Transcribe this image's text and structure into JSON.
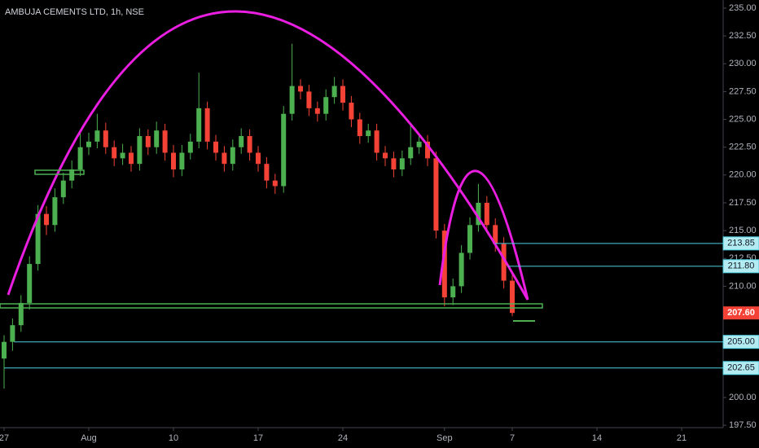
{
  "chart_data": {
    "type": "candlestick",
    "title": "AMBUJA CEMENTS LTD, 1h, NSE",
    "x": [
      0,
      0.5,
      1,
      1.5,
      2,
      2.5,
      3,
      3.5,
      4,
      4.5,
      5,
      5.5,
      6,
      6.5,
      7,
      7.5,
      8,
      8.5,
      9,
      9.5,
      10,
      10.5,
      11,
      11.5,
      12,
      12.5,
      13,
      13.5,
      14,
      14.5,
      15,
      15.5,
      16,
      16.5,
      17,
      17.5,
      18,
      18.5,
      19,
      19.5,
      20,
      20.5,
      21,
      21.5,
      22,
      22.5,
      23,
      23.5,
      24,
      24.5,
      25,
      25.5,
      26,
      26.5,
      27,
      27.5,
      28,
      28.5,
      29,
      29.5,
      30
    ],
    "open": [
      203.5,
      205.0,
      206.5,
      208.5,
      212.0,
      216.5,
      215.5,
      218.0,
      219.5,
      220.5,
      222.5,
      223.0,
      224.0,
      222.5,
      221.5,
      222.0,
      221.0,
      223.5,
      222.5,
      224.0,
      222.0,
      220.5,
      222.0,
      223.0,
      226.0,
      223.0,
      222.0,
      221.0,
      222.5,
      223.5,
      222.0,
      221.0,
      219.5,
      219.0,
      225.5,
      228.0,
      227.5,
      226.0,
      225.5,
      227.0,
      228.0,
      226.5,
      225.0,
      223.5,
      224.0,
      222.0,
      221.5,
      220.5,
      221.5,
      222.5,
      223.0,
      221.5,
      215.0,
      209.0,
      210.0,
      213.0,
      215.5,
      217.5,
      215.5,
      213.8,
      210.5
    ],
    "high": [
      205.6,
      207.1,
      209.2,
      212.7,
      217.3,
      217.2,
      218.8,
      220.2,
      221.3,
      224.0,
      223.8,
      225.5,
      224.7,
      223.1,
      222.8,
      222.6,
      224.2,
      224.1,
      224.8,
      224.6,
      222.7,
      222.7,
      223.7,
      229.2,
      226.6,
      223.6,
      222.6,
      223.2,
      224.2,
      224.1,
      222.6,
      221.6,
      220.1,
      226.2,
      231.8,
      228.6,
      228.1,
      226.6,
      227.7,
      228.8,
      228.6,
      227.1,
      225.6,
      224.6,
      224.6,
      222.6,
      222.1,
      222.2,
      224.5,
      223.6,
      223.6,
      222.1,
      215.6,
      210.7,
      213.7,
      216.2,
      219.2,
      218.1,
      216.1,
      214.4,
      211.1
    ],
    "low": [
      200.8,
      204.2,
      205.9,
      207.9,
      211.4,
      214.6,
      214.9,
      217.4,
      218.8,
      219.9,
      221.8,
      222.4,
      221.9,
      220.8,
      220.9,
      220.3,
      220.4,
      221.8,
      221.9,
      221.3,
      219.8,
      219.9,
      221.4,
      222.4,
      222.3,
      221.3,
      220.3,
      220.4,
      221.9,
      221.3,
      220.3,
      218.8,
      218.3,
      218.4,
      224.9,
      226.8,
      225.3,
      224.8,
      224.9,
      226.4,
      225.8,
      224.3,
      222.8,
      222.9,
      221.3,
      220.8,
      219.8,
      219.9,
      220.9,
      221.9,
      220.8,
      214.3,
      208.2,
      208.3,
      209.4,
      212.4,
      214.9,
      214.8,
      213.1,
      209.8,
      207.3
    ],
    "close": [
      205.0,
      206.5,
      208.5,
      212.0,
      216.5,
      215.5,
      218.0,
      219.5,
      220.5,
      222.5,
      223.0,
      224.0,
      222.5,
      221.5,
      222.0,
      221.0,
      223.5,
      222.5,
      224.0,
      222.0,
      220.5,
      222.0,
      223.0,
      226.0,
      223.0,
      222.0,
      221.0,
      222.5,
      223.5,
      222.0,
      221.0,
      219.5,
      219.0,
      225.5,
      228.0,
      227.5,
      226.0,
      225.5,
      227.0,
      228.0,
      226.5,
      225.0,
      223.5,
      224.0,
      222.0,
      221.5,
      220.5,
      221.5,
      222.5,
      223.0,
      221.5,
      215.0,
      209.0,
      210.0,
      213.0,
      215.5,
      217.5,
      215.5,
      213.8,
      210.5,
      207.6
    ],
    "up_color": "#4caf50",
    "down_color": "#f44336",
    "xlim": [
      -0.24,
      42.45
    ],
    "xticks": [
      {
        "value": 0,
        "label": "27"
      },
      {
        "value": 5,
        "label": "Aug"
      },
      10,
      {
        "value": 15,
        "label": "17"
      },
      {
        "value": 20,
        "label": "24"
      },
      {
        "value": 26,
        "label": "Sep"
      },
      {
        "value": 30,
        "label": "7"
      },
      {
        "value": 35,
        "label": "14"
      },
      {
        "value": 40,
        "label": "21"
      }
    ],
    "ylim": [
      197.29,
      235.73
    ],
    "yticks": [
      {
        "value": 197.5,
        "label": "197.50"
      },
      {
        "value": 200,
        "label": "200.00"
      },
      {
        "value": 202.5,
        "label": "202.50"
      },
      {
        "value": 205,
        "label": "205.00"
      },
      {
        "value": 207.5,
        "label": "207.50"
      },
      {
        "value": 210,
        "label": "210.00"
      },
      {
        "value": 212.5,
        "label": "212.50"
      },
      {
        "value": 215,
        "label": "215.00"
      },
      {
        "value": 217.5,
        "label": "217.50"
      },
      {
        "value": 220,
        "label": "220.00"
      },
      {
        "value": 222.5,
        "label": "222.50"
      },
      {
        "value": 225,
        "label": "225.00"
      },
      {
        "value": 227.5,
        "label": "227.50"
      },
      {
        "value": 230,
        "label": "230.00"
      },
      {
        "value": 232.5,
        "label": "232.50"
      },
      {
        "value": 235,
        "label": "235.00"
      }
    ],
    "grid": false,
    "levels": [
      {
        "value": 213.85,
        "label": "213.85",
        "from": 29
      },
      {
        "value": 211.8,
        "label": "211.80",
        "from": 29.75
      },
      {
        "value": 205,
        "label": "205.00",
        "from": 0.6
      },
      {
        "value": 202.65,
        "label": "202.65",
        "from": 0
      }
    ],
    "level_color": "#4dd0e1",
    "last_price": {
      "value": 207.6,
      "label": "207.60"
    }
  }
}
